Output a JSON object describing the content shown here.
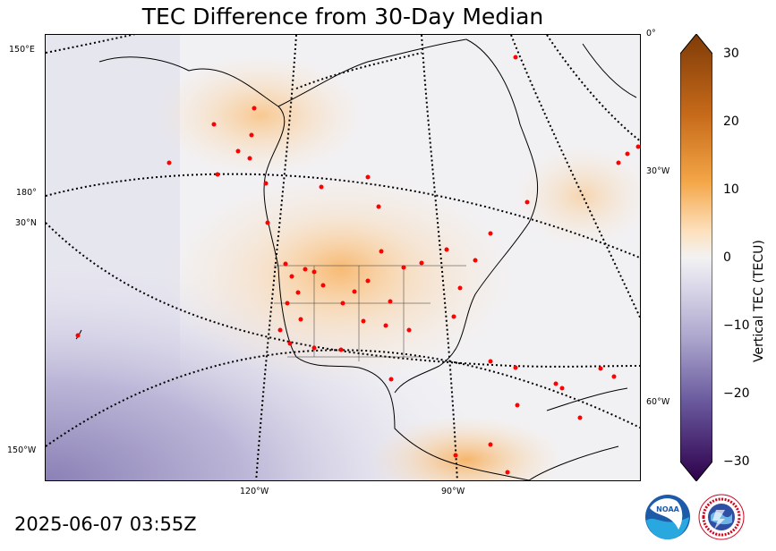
{
  "title": "TEC Difference from 30-Day Median",
  "timestamp": "2025-06-07 03:55Z",
  "grid_labels": {
    "lon_150E": "150°E",
    "lon_180": "180°",
    "lat_30N": "30°N",
    "lon_150W": "150°W",
    "lon_120W": "120°W",
    "lon_90W": "90°W",
    "lon_0": "0°",
    "lon_30W": "30°W",
    "lon_60W": "60°W"
  },
  "colorbar": {
    "label": "Vertical TEC (TECU)",
    "min": -30,
    "max": 30,
    "ticks": [
      "30",
      "20",
      "10",
      "0",
      "−10",
      "−20",
      "−30"
    ],
    "colors": {
      "high": "#7f3b08",
      "mid_high": "#f4a647",
      "zero": "#f2f2f2",
      "mid_low": "#9c95c2",
      "low": "#2d004b"
    }
  },
  "logos": {
    "noaa": "NOAA",
    "nws": "NATIONAL WEATHER SERVICE"
  },
  "station_color": "#ff0000"
}
